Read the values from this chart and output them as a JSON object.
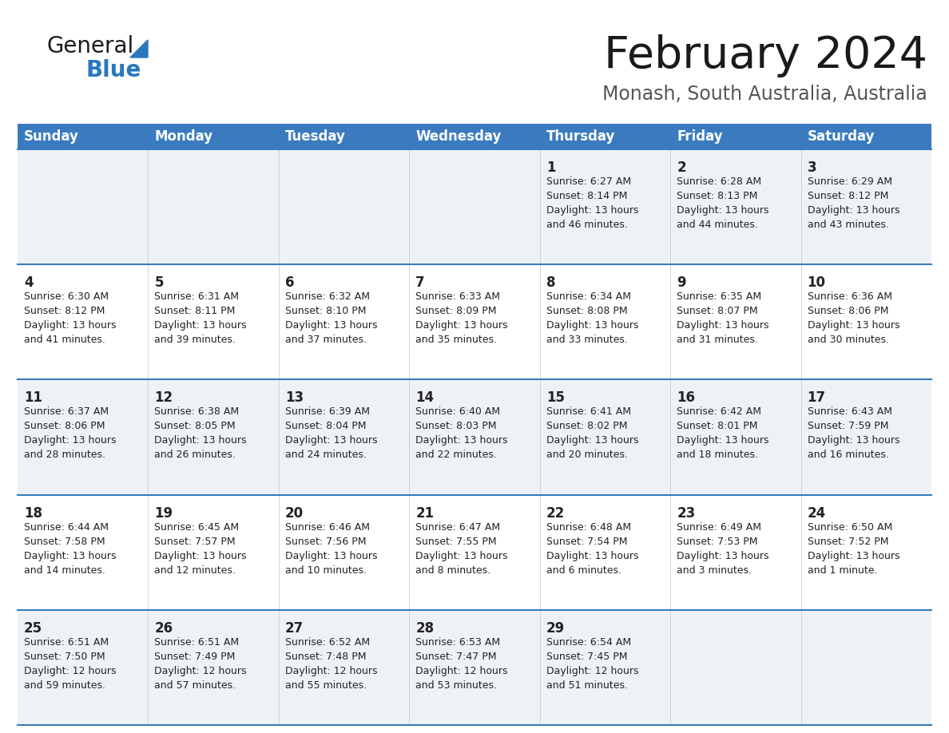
{
  "title": "February 2024",
  "subtitle": "Monash, South Australia, Australia",
  "days_of_week": [
    "Sunday",
    "Monday",
    "Tuesday",
    "Wednesday",
    "Thursday",
    "Friday",
    "Saturday"
  ],
  "header_bg": "#3a7bbf",
  "header_text": "#ffffff",
  "row_line_color": "#3a7bbf",
  "row1_bg": "#eef2f7",
  "row2_bg": "#ffffff",
  "day_number_color": "#222222",
  "cell_text_color": "#222222",
  "calendar_data": [
    [
      null,
      null,
      null,
      null,
      {
        "day": "1",
        "sunrise": "6:27 AM",
        "sunset": "8:14 PM",
        "daylight_h": "13 hours",
        "daylight_m": "and 46 minutes."
      },
      {
        "day": "2",
        "sunrise": "6:28 AM",
        "sunset": "8:13 PM",
        "daylight_h": "13 hours",
        "daylight_m": "and 44 minutes."
      },
      {
        "day": "3",
        "sunrise": "6:29 AM",
        "sunset": "8:12 PM",
        "daylight_h": "13 hours",
        "daylight_m": "and 43 minutes."
      }
    ],
    [
      {
        "day": "4",
        "sunrise": "6:30 AM",
        "sunset": "8:12 PM",
        "daylight_h": "13 hours",
        "daylight_m": "and 41 minutes."
      },
      {
        "day": "5",
        "sunrise": "6:31 AM",
        "sunset": "8:11 PM",
        "daylight_h": "13 hours",
        "daylight_m": "and 39 minutes."
      },
      {
        "day": "6",
        "sunrise": "6:32 AM",
        "sunset": "8:10 PM",
        "daylight_h": "13 hours",
        "daylight_m": "and 37 minutes."
      },
      {
        "day": "7",
        "sunrise": "6:33 AM",
        "sunset": "8:09 PM",
        "daylight_h": "13 hours",
        "daylight_m": "and 35 minutes."
      },
      {
        "day": "8",
        "sunrise": "6:34 AM",
        "sunset": "8:08 PM",
        "daylight_h": "13 hours",
        "daylight_m": "and 33 minutes."
      },
      {
        "day": "9",
        "sunrise": "6:35 AM",
        "sunset": "8:07 PM",
        "daylight_h": "13 hours",
        "daylight_m": "and 31 minutes."
      },
      {
        "day": "10",
        "sunrise": "6:36 AM",
        "sunset": "8:06 PM",
        "daylight_h": "13 hours",
        "daylight_m": "and 30 minutes."
      }
    ],
    [
      {
        "day": "11",
        "sunrise": "6:37 AM",
        "sunset": "8:06 PM",
        "daylight_h": "13 hours",
        "daylight_m": "and 28 minutes."
      },
      {
        "day": "12",
        "sunrise": "6:38 AM",
        "sunset": "8:05 PM",
        "daylight_h": "13 hours",
        "daylight_m": "and 26 minutes."
      },
      {
        "day": "13",
        "sunrise": "6:39 AM",
        "sunset": "8:04 PM",
        "daylight_h": "13 hours",
        "daylight_m": "and 24 minutes."
      },
      {
        "day": "14",
        "sunrise": "6:40 AM",
        "sunset": "8:03 PM",
        "daylight_h": "13 hours",
        "daylight_m": "and 22 minutes."
      },
      {
        "day": "15",
        "sunrise": "6:41 AM",
        "sunset": "8:02 PM",
        "daylight_h": "13 hours",
        "daylight_m": "and 20 minutes."
      },
      {
        "day": "16",
        "sunrise": "6:42 AM",
        "sunset": "8:01 PM",
        "daylight_h": "13 hours",
        "daylight_m": "and 18 minutes."
      },
      {
        "day": "17",
        "sunrise": "6:43 AM",
        "sunset": "7:59 PM",
        "daylight_h": "13 hours",
        "daylight_m": "and 16 minutes."
      }
    ],
    [
      {
        "day": "18",
        "sunrise": "6:44 AM",
        "sunset": "7:58 PM",
        "daylight_h": "13 hours",
        "daylight_m": "and 14 minutes."
      },
      {
        "day": "19",
        "sunrise": "6:45 AM",
        "sunset": "7:57 PM",
        "daylight_h": "13 hours",
        "daylight_m": "and 12 minutes."
      },
      {
        "day": "20",
        "sunrise": "6:46 AM",
        "sunset": "7:56 PM",
        "daylight_h": "13 hours",
        "daylight_m": "and 10 minutes."
      },
      {
        "day": "21",
        "sunrise": "6:47 AM",
        "sunset": "7:55 PM",
        "daylight_h": "13 hours",
        "daylight_m": "and 8 minutes."
      },
      {
        "day": "22",
        "sunrise": "6:48 AM",
        "sunset": "7:54 PM",
        "daylight_h": "13 hours",
        "daylight_m": "and 6 minutes."
      },
      {
        "day": "23",
        "sunrise": "6:49 AM",
        "sunset": "7:53 PM",
        "daylight_h": "13 hours",
        "daylight_m": "and 3 minutes."
      },
      {
        "day": "24",
        "sunrise": "6:50 AM",
        "sunset": "7:52 PM",
        "daylight_h": "13 hours",
        "daylight_m": "and 1 minute."
      }
    ],
    [
      {
        "day": "25",
        "sunrise": "6:51 AM",
        "sunset": "7:50 PM",
        "daylight_h": "12 hours",
        "daylight_m": "and 59 minutes."
      },
      {
        "day": "26",
        "sunrise": "6:51 AM",
        "sunset": "7:49 PM",
        "daylight_h": "12 hours",
        "daylight_m": "and 57 minutes."
      },
      {
        "day": "27",
        "sunrise": "6:52 AM",
        "sunset": "7:48 PM",
        "daylight_h": "12 hours",
        "daylight_m": "and 55 minutes."
      },
      {
        "day": "28",
        "sunrise": "6:53 AM",
        "sunset": "7:47 PM",
        "daylight_h": "12 hours",
        "daylight_m": "and 53 minutes."
      },
      {
        "day": "29",
        "sunrise": "6:54 AM",
        "sunset": "7:45 PM",
        "daylight_h": "12 hours",
        "daylight_m": "and 51 minutes."
      },
      null,
      null
    ]
  ],
  "logo_color_general": "#1a1a1a",
  "logo_color_blue": "#2878be",
  "logo_triangle_color": "#2878be",
  "title_color": "#1a1a1a",
  "subtitle_color": "#555555"
}
